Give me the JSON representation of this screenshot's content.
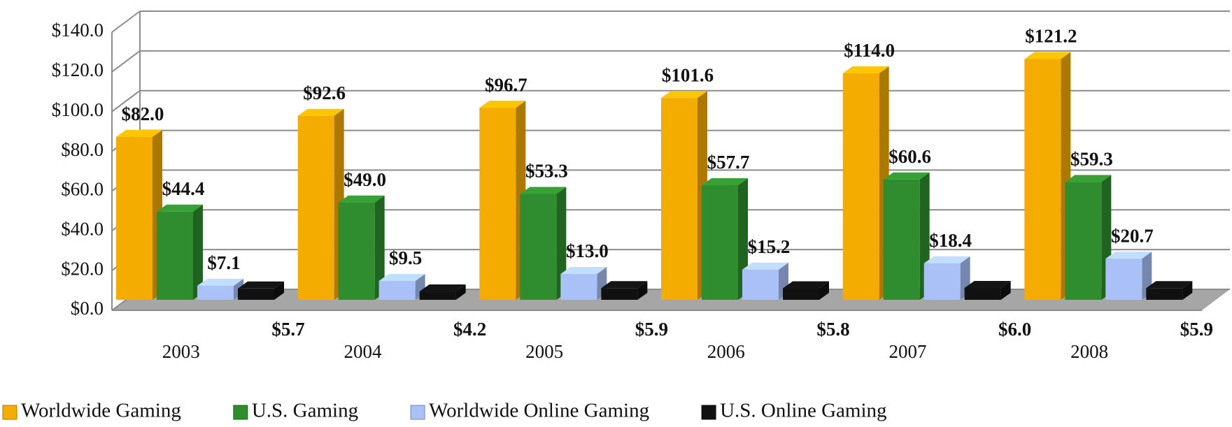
{
  "chart_data": {
    "type": "bar3d",
    "categories": [
      "2003",
      "2004",
      "2005",
      "2006",
      "2007",
      "2008"
    ],
    "series": [
      {
        "name": "Worldwide Gaming",
        "color": "#f5ac00",
        "values": [
          82.0,
          92.6,
          96.7,
          101.6,
          114.0,
          121.2
        ],
        "value_labels": [
          "$82.0",
          "$92.6",
          "$96.7",
          "$101.6",
          "$114.0",
          "$121.2"
        ]
      },
      {
        "name": "U.S. Gaming",
        "color": "#2f8d2f",
        "values": [
          44.4,
          49.0,
          53.3,
          57.7,
          60.6,
          59.3
        ],
        "value_labels": [
          "$44.4",
          "$49.0",
          "$53.3",
          "$57.7",
          "$60.6",
          "$59.3"
        ]
      },
      {
        "name": "Worldwide Online Gaming",
        "color": "#a9c1f7",
        "values": [
          7.1,
          9.5,
          13.0,
          15.2,
          18.4,
          20.7
        ],
        "value_labels": [
          "$7.1",
          "$9.5",
          "$13.0",
          "$15.2",
          "$18.4",
          "$20.7"
        ]
      },
      {
        "name": "U.S. Online Gaming",
        "color": "#111111",
        "values": [
          5.7,
          4.2,
          5.9,
          5.8,
          6.0,
          5.9
        ],
        "value_labels": [
          "$5.7",
          "$4.2",
          "$5.9",
          "$5.8",
          "$6.0",
          "$5.9"
        ]
      }
    ],
    "ylim": [
      0,
      140
    ],
    "yticks": [
      {
        "value": 0,
        "label": "$0.0"
      },
      {
        "value": 20,
        "label": "$20.0"
      },
      {
        "value": 40,
        "label": "$40.0"
      },
      {
        "value": 60,
        "label": "$60.0"
      },
      {
        "value": 80,
        "label": "$80.0"
      },
      {
        "value": 100,
        "label": "$100.0"
      },
      {
        "value": 120,
        "label": "$120.0"
      },
      {
        "value": 140,
        "label": "$140.0"
      }
    ],
    "grid": true,
    "legend": "bottom"
  }
}
